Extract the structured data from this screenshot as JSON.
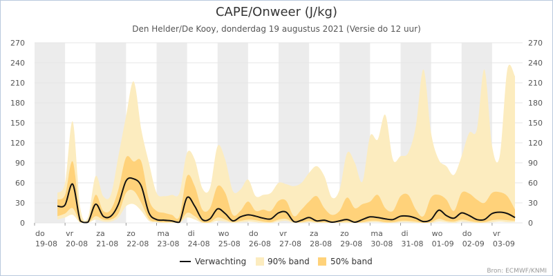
{
  "chart_data": {
    "type": "area",
    "title": "CAPE/Onweer (J/kg)",
    "subtitle": "Den Helder/De Kooy, donderdag 19 augustus 2021 (Versie do 12 uur)",
    "credit": "Bron: ECMWF/KNMI",
    "ylim": [
      0,
      270
    ],
    "yticks": [
      0,
      30,
      60,
      90,
      120,
      150,
      180,
      210,
      240,
      270
    ],
    "x_range": [
      "2021-08-19T00:00",
      "2021-09-04T00:00"
    ],
    "x_ticks": [
      {
        "day": "do",
        "date": "19-08"
      },
      {
        "day": "vr",
        "date": "20-08"
      },
      {
        "day": "za",
        "date": "21-08"
      },
      {
        "day": "zo",
        "date": "22-08"
      },
      {
        "day": "ma",
        "date": "23-08"
      },
      {
        "day": "di",
        "date": "24-08"
      },
      {
        "day": "wo",
        "date": "25-08"
      },
      {
        "day": "do",
        "date": "26-08"
      },
      {
        "day": "vr",
        "date": "27-08"
      },
      {
        "day": "za",
        "date": "28-08"
      },
      {
        "day": "zo",
        "date": "29-08"
      },
      {
        "day": "ma",
        "date": "30-08"
      },
      {
        "day": "di",
        "date": "31-08"
      },
      {
        "day": "wo",
        "date": "01-09"
      },
      {
        "day": "do",
        "date": "02-09"
      },
      {
        "day": "vr",
        "date": "03-09"
      }
    ],
    "x": [
      "2021-08-19T18:00",
      "2021-08-20T00:00",
      "2021-08-20T06:00",
      "2021-08-20T12:00",
      "2021-08-20T18:00",
      "2021-08-21T00:00",
      "2021-08-21T06:00",
      "2021-08-21T12:00",
      "2021-08-21T18:00",
      "2021-08-22T00:00",
      "2021-08-22T06:00",
      "2021-08-22T12:00",
      "2021-08-22T18:00",
      "2021-08-23T00:00",
      "2021-08-23T06:00",
      "2021-08-23T12:00",
      "2021-08-23T18:00",
      "2021-08-24T00:00",
      "2021-08-24T06:00",
      "2021-08-24T12:00",
      "2021-08-24T18:00",
      "2021-08-25T00:00",
      "2021-08-25T06:00",
      "2021-08-25T12:00",
      "2021-08-25T18:00",
      "2021-08-26T00:00",
      "2021-08-26T06:00",
      "2021-08-26T12:00",
      "2021-08-26T18:00",
      "2021-08-27T00:00",
      "2021-08-27T06:00",
      "2021-08-27T12:00",
      "2021-08-27T18:00",
      "2021-08-28T00:00",
      "2021-08-28T06:00",
      "2021-08-28T12:00",
      "2021-08-28T18:00",
      "2021-08-29T00:00",
      "2021-08-29T06:00",
      "2021-08-29T12:00",
      "2021-08-29T18:00",
      "2021-08-30T00:00",
      "2021-08-30T06:00",
      "2021-08-30T12:00",
      "2021-08-30T18:00",
      "2021-08-31T00:00",
      "2021-08-31T06:00",
      "2021-08-31T12:00",
      "2021-08-31T18:00",
      "2021-09-01T00:00",
      "2021-09-01T06:00",
      "2021-09-01T12:00",
      "2021-09-01T18:00",
      "2021-09-02T00:00",
      "2021-09-02T06:00",
      "2021-09-02T12:00",
      "2021-09-02T18:00",
      "2021-09-03T00:00",
      "2021-09-03T06:00",
      "2021-09-03T12:00",
      "2021-09-03T18:00"
    ],
    "series": [
      {
        "name": "Verwachting",
        "color": "#111111",
        "values": [
          25,
          27,
          58,
          3,
          1,
          28,
          10,
          10,
          28,
          63,
          66,
          55,
          15,
          5,
          4,
          3,
          1,
          38,
          25,
          5,
          6,
          21,
          14,
          3,
          9,
          12,
          10,
          7,
          6,
          15,
          16,
          2,
          4,
          8,
          3,
          4,
          1,
          3,
          5,
          1,
          5,
          9,
          8,
          6,
          5,
          10,
          10,
          7,
          2,
          5,
          19,
          11,
          7,
          15,
          11,
          5,
          5,
          14,
          16,
          14,
          8
        ]
      },
      {
        "name": "90% band",
        "color": "#fcecbf",
        "lower": [
          5,
          8,
          12,
          0,
          0,
          5,
          2,
          2,
          8,
          25,
          28,
          18,
          3,
          1,
          0,
          0,
          0,
          8,
          5,
          0,
          0,
          3,
          2,
          0,
          1,
          2,
          1,
          0,
          0,
          2,
          3,
          0,
          0,
          1,
          0,
          0,
          0,
          0,
          0,
          0,
          0,
          1,
          1,
          0,
          0,
          1,
          1,
          0,
          0,
          0,
          2,
          1,
          0,
          2,
          1,
          0,
          0,
          1,
          2,
          1,
          1
        ],
        "upper": [
          45,
          60,
          152,
          22,
          8,
          70,
          40,
          42,
          100,
          160,
          212,
          140,
          90,
          45,
          40,
          42,
          45,
          105,
          95,
          52,
          52,
          115,
          95,
          48,
          50,
          65,
          40,
          42,
          45,
          60,
          58,
          55,
          60,
          75,
          85,
          70,
          38,
          50,
          105,
          90,
          62,
          130,
          125,
          162,
          95,
          100,
          105,
          145,
          230,
          135,
          95,
          85,
          72,
          100,
          135,
          140,
          230,
          115,
          100,
          230,
          220
        ]
      },
      {
        "name": "50% band",
        "color": "#ffd27a",
        "lower": [
          10,
          14,
          22,
          1,
          0,
          10,
          5,
          5,
          14,
          45,
          48,
          30,
          6,
          2,
          1,
          1,
          0,
          15,
          10,
          1,
          1,
          8,
          5,
          1,
          3,
          5,
          4,
          2,
          1,
          5,
          6,
          1,
          1,
          3,
          1,
          1,
          0,
          1,
          2,
          0,
          1,
          3,
          3,
          1,
          1,
          3,
          3,
          2,
          0,
          1,
          6,
          3,
          2,
          5,
          3,
          1,
          1,
          4,
          5,
          4,
          3
        ],
        "upper": [
          35,
          42,
          92,
          8,
          3,
          42,
          18,
          20,
          50,
          98,
          92,
          92,
          35,
          18,
          15,
          12,
          10,
          70,
          55,
          20,
          22,
          55,
          45,
          12,
          18,
          32,
          18,
          20,
          18,
          33,
          33,
          10,
          20,
          32,
          40,
          22,
          12,
          18,
          38,
          22,
          28,
          32,
          42,
          22,
          18,
          40,
          42,
          20,
          10,
          38,
          42,
          35,
          18,
          45,
          44,
          35,
          30,
          45,
          46,
          40,
          20
        ]
      }
    ],
    "legend": {
      "placement": "bottom",
      "entries": [
        "Verwachting",
        "90% band",
        "50% band"
      ]
    },
    "grid": true,
    "weekend_bands": true
  },
  "colors": {
    "band90": "#fcecbf",
    "band50": "#ffd27a",
    "line": "#111111",
    "day_shade": "#ececec",
    "grid": "#e6e6e6"
  }
}
